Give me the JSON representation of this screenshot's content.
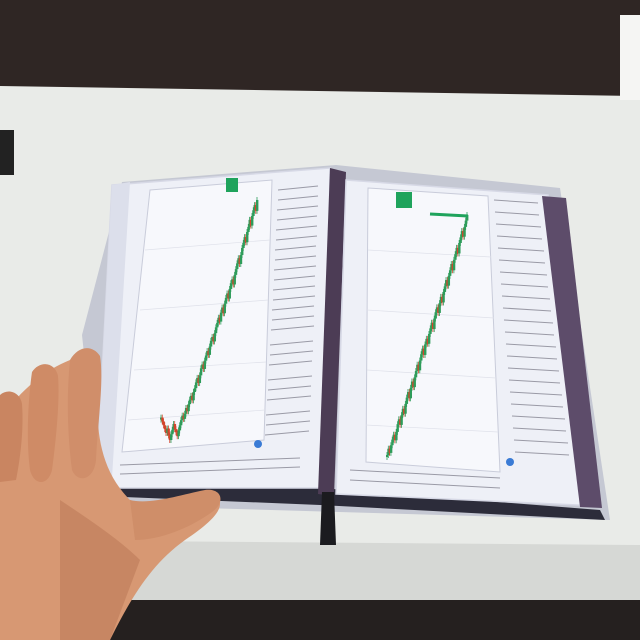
{
  "scene": {
    "subject": "open-book-with-candlestick-charts",
    "colors": {
      "wall": "#2f2624",
      "table": "#e9ebe8",
      "table_shadow": "#cfd2cf",
      "page": "#eef0f7",
      "page_edge": "#d7d9e6",
      "chart_bg": "#f4f5fb",
      "grid": "#d9dbe6",
      "spine": "#4c3c55",
      "spine_side": "#5d4c6a",
      "candle_up": "#2e9c5a",
      "candle_down": "#d2452c",
      "highlight": "#1fa35c",
      "text_lines": "#9a9aa6",
      "skin": "#d79873",
      "skin_shadow": "#b97856",
      "ribbon": "#1b1b1f"
    }
  },
  "book": {
    "left_page": {
      "chart_data": {
        "type": "candlestick",
        "close": [
          14.8,
          14.2,
          13.6,
          13.0,
          12.4,
          13.1,
          12.0,
          11.3,
          12.2,
          12.9,
          13.8,
          13.0,
          12.5,
          11.9,
          12.8,
          13.6,
          14.4,
          15.1,
          14.6,
          15.4,
          16.3,
          15.8,
          16.9,
          17.6,
          18.2,
          17.5,
          18.8,
          19.4,
          20.3,
          21.0,
          20.2,
          21.4,
          22.5,
          23.1,
          22.4,
          23.7,
          24.5,
          25.2,
          24.6,
          25.9,
          26.8,
          27.4,
          26.7,
          28.0,
          28.9,
          29.6,
          30.4,
          29.8,
          31.2,
          32.0,
          31.1,
          32.6,
          33.5,
          34.2,
          33.4,
          34.9,
          35.8,
          36.4,
          35.6,
          37.1,
          38.0,
          38.9,
          39.7,
          38.8,
          40.2,
          41.3,
          42.1,
          43.0,
          42.2,
          43.8,
          44.6,
          45.7,
          44.8,
          46.3,
          47.2,
          48.0,
          47.1,
          48.8
        ]
      }
    },
    "right_page": {
      "chart_data": {
        "type": "candlestick",
        "close": [
          10.5,
          11.4,
          10.8,
          11.9,
          12.7,
          13.4,
          12.6,
          13.8,
          14.9,
          15.6,
          14.8,
          16.2,
          17.1,
          16.4,
          17.8,
          18.7,
          19.5,
          18.6,
          20.1,
          21.0,
          20.2,
          21.6,
          22.5,
          23.4,
          22.6,
          24.0,
          24.9,
          25.7,
          24.8,
          26.3,
          27.1,
          26.4,
          27.8,
          28.6,
          29.4,
          28.5,
          30.0,
          30.9,
          31.6,
          30.8,
          32.2,
          33.1,
          32.3,
          33.8,
          34.6,
          35.5,
          34.7,
          36.1,
          36.9,
          37.8,
          36.9,
          38.4,
          39.2,
          40.1,
          39.3,
          40.8,
          41.6,
          42.5,
          41.7,
          43.1,
          44.0,
          44.8
        ]
      }
    }
  }
}
